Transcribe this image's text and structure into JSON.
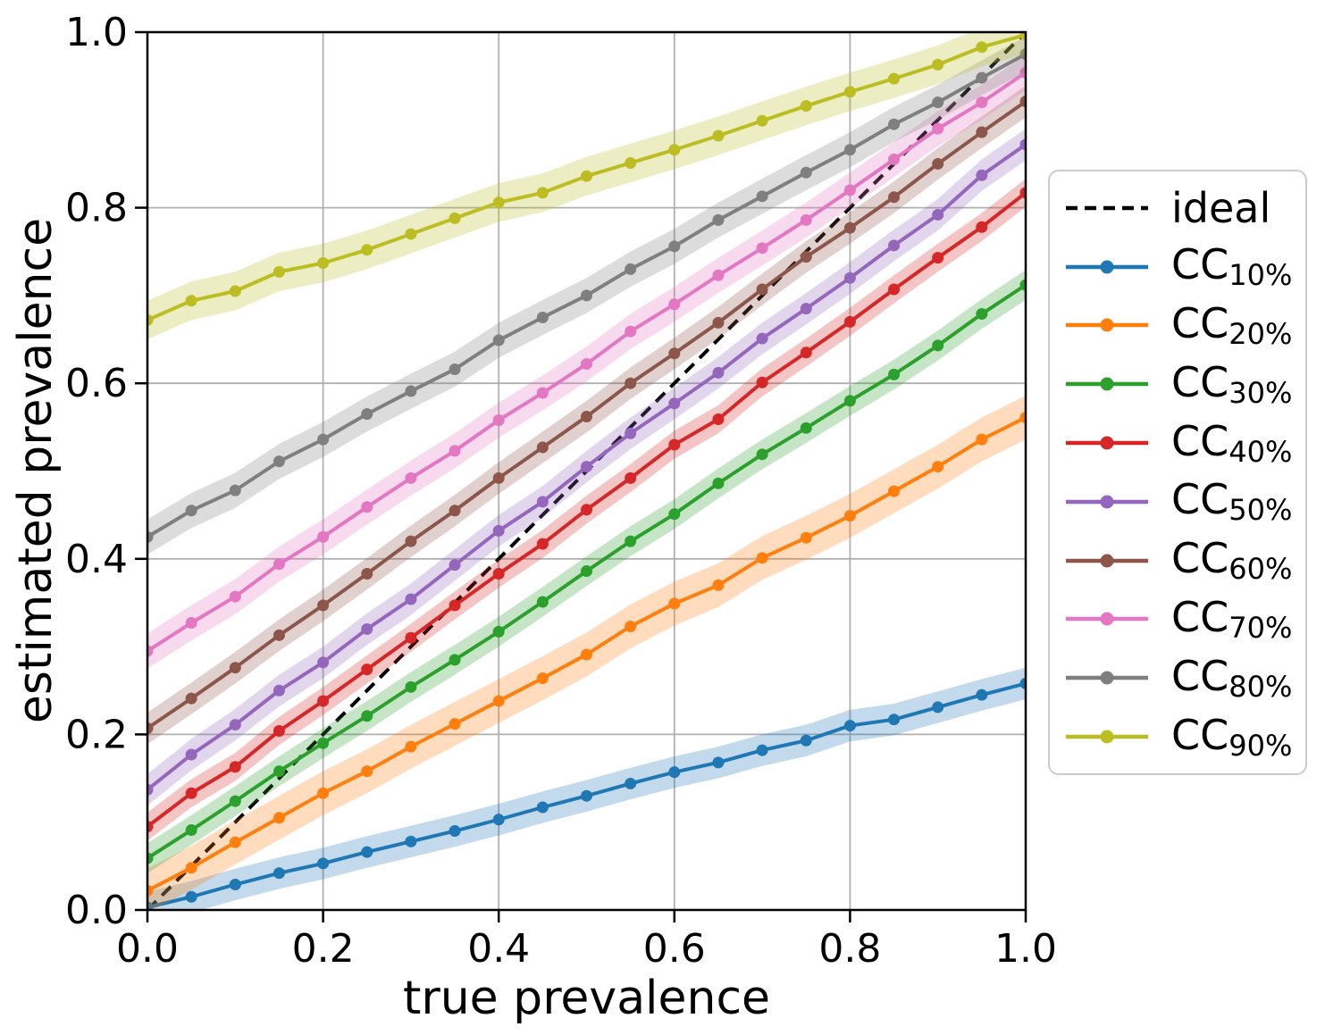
{
  "figure": {
    "background": "#ffffff"
  },
  "chart_data": {
    "type": "line",
    "title": "",
    "xlabel": "true prevalence",
    "ylabel": "estimated prevalence",
    "xlim": [
      0.0,
      1.0
    ],
    "ylim": [
      0.0,
      1.0
    ],
    "grid": true,
    "grid_color": "#b0b0b0",
    "legend_position": "right-outside",
    "xticks": [
      "0.0",
      "0.2",
      "0.4",
      "0.6",
      "0.8",
      "1.0"
    ],
    "yticks": [
      "0.0",
      "0.2",
      "0.4",
      "0.6",
      "0.8",
      "1.0"
    ],
    "x": [
      0.0,
      0.05,
      0.1,
      0.15,
      0.2,
      0.25,
      0.3,
      0.35,
      0.4,
      0.45,
      0.5,
      0.55,
      0.6,
      0.65,
      0.7,
      0.75,
      0.8,
      0.85,
      0.9,
      0.95,
      1.0
    ],
    "ideal": {
      "label": "ideal",
      "color": "#000000",
      "style": "dashed",
      "from": [
        0.0,
        0.0
      ],
      "to": [
        1.0,
        1.0
      ]
    },
    "series": [
      {
        "base": "CC",
        "sub": "10%",
        "color": "#1f77b4",
        "band": 0.018,
        "values": [
          0.003,
          0.015,
          0.029,
          0.042,
          0.053,
          0.066,
          0.078,
          0.09,
          0.103,
          0.117,
          0.13,
          0.144,
          0.157,
          0.168,
          0.182,
          0.193,
          0.21,
          0.217,
          0.231,
          0.245,
          0.258
        ]
      },
      {
        "base": "CC",
        "sub": "20%",
        "color": "#ff7f0e",
        "band": 0.025,
        "values": [
          0.022,
          0.048,
          0.077,
          0.105,
          0.133,
          0.158,
          0.186,
          0.212,
          0.238,
          0.264,
          0.291,
          0.323,
          0.349,
          0.37,
          0.401,
          0.424,
          0.449,
          0.477,
          0.505,
          0.536,
          0.561
        ]
      },
      {
        "base": "CC",
        "sub": "30%",
        "color": "#2ca02c",
        "band": 0.017,
        "values": [
          0.059,
          0.091,
          0.124,
          0.158,
          0.19,
          0.221,
          0.254,
          0.285,
          0.317,
          0.351,
          0.386,
          0.42,
          0.451,
          0.486,
          0.519,
          0.549,
          0.58,
          0.61,
          0.643,
          0.679,
          0.712
        ]
      },
      {
        "base": "CC",
        "sub": "40%",
        "color": "#d62728",
        "band": 0.016,
        "values": [
          0.095,
          0.133,
          0.163,
          0.204,
          0.238,
          0.274,
          0.31,
          0.347,
          0.383,
          0.417,
          0.456,
          0.492,
          0.53,
          0.559,
          0.601,
          0.635,
          0.67,
          0.707,
          0.743,
          0.778,
          0.817
        ]
      },
      {
        "base": "CC",
        "sub": "50%",
        "color": "#9467bd",
        "band": 0.018,
        "values": [
          0.137,
          0.177,
          0.211,
          0.25,
          0.282,
          0.32,
          0.354,
          0.393,
          0.432,
          0.465,
          0.505,
          0.543,
          0.577,
          0.612,
          0.651,
          0.685,
          0.72,
          0.757,
          0.792,
          0.837,
          0.872
        ]
      },
      {
        "base": "CC",
        "sub": "60%",
        "color": "#8c564b",
        "band": 0.018,
        "values": [
          0.207,
          0.241,
          0.276,
          0.313,
          0.347,
          0.383,
          0.42,
          0.455,
          0.492,
          0.527,
          0.562,
          0.6,
          0.634,
          0.669,
          0.707,
          0.744,
          0.777,
          0.812,
          0.85,
          0.886,
          0.921
        ]
      },
      {
        "base": "CC",
        "sub": "70%",
        "color": "#e377c2",
        "band": 0.02,
        "values": [
          0.295,
          0.327,
          0.357,
          0.394,
          0.425,
          0.459,
          0.492,
          0.523,
          0.558,
          0.589,
          0.622,
          0.659,
          0.69,
          0.723,
          0.754,
          0.786,
          0.82,
          0.855,
          0.89,
          0.92,
          0.954
        ]
      },
      {
        "base": "CC",
        "sub": "80%",
        "color": "#7f7f7f",
        "band": 0.02,
        "values": [
          0.425,
          0.455,
          0.478,
          0.511,
          0.536,
          0.565,
          0.591,
          0.616,
          0.649,
          0.675,
          0.7,
          0.73,
          0.756,
          0.786,
          0.813,
          0.84,
          0.866,
          0.895,
          0.92,
          0.948,
          0.975
        ]
      },
      {
        "base": "CC",
        "sub": "90%",
        "color": "#bcbd22",
        "band": 0.022,
        "values": [
          0.672,
          0.694,
          0.705,
          0.727,
          0.737,
          0.752,
          0.77,
          0.788,
          0.806,
          0.817,
          0.836,
          0.851,
          0.866,
          0.882,
          0.899,
          0.916,
          0.932,
          0.947,
          0.963,
          0.983,
          0.997
        ]
      }
    ]
  }
}
